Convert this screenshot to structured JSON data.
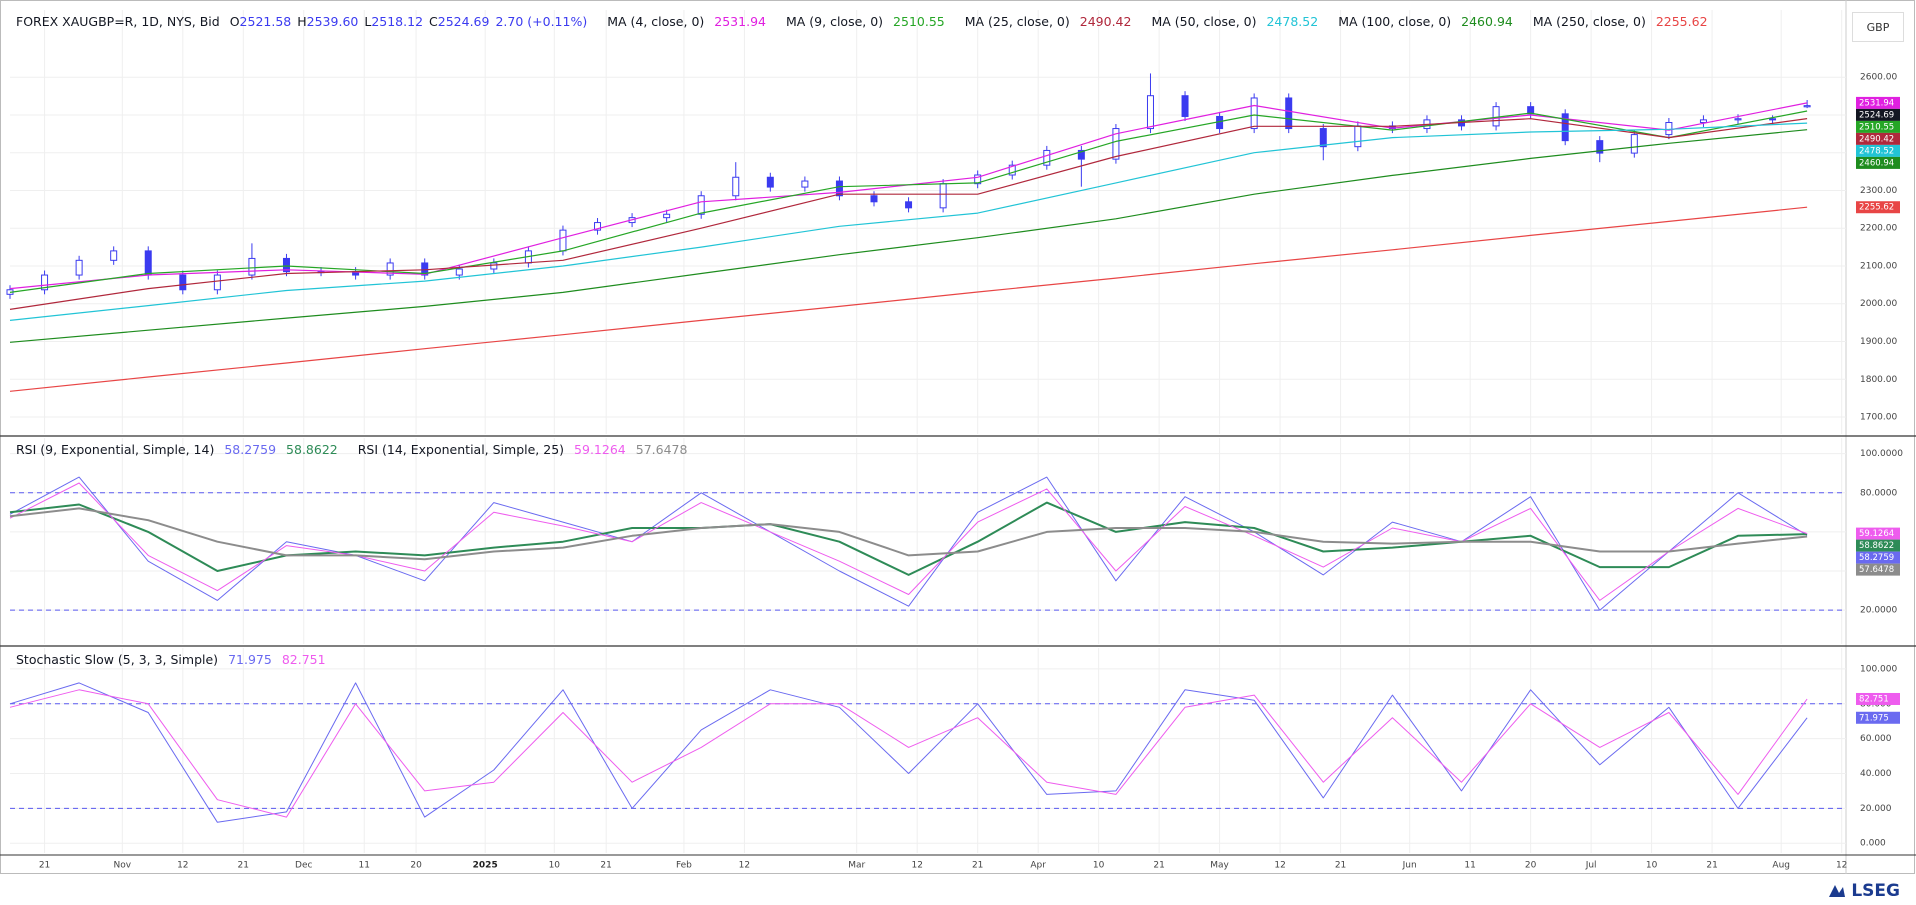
{
  "chart_data": [
    {
      "type": "candlestick",
      "title": "FOREX XAUGBP=R, 1D, NYS, Bid",
      "ohlc": [
        {
          "name": "O",
          "value": 2521.58
        },
        {
          "name": "H",
          "value": 2539.6,
          "label": "2539.60"
        },
        {
          "name": "L",
          "value": 2518.12
        },
        {
          "name": "C",
          "value": 2524.69
        }
      ],
      "change": "2.70 (+0.11%)",
      "currency": "GBP",
      "xlim": [
        0,
        212.5
      ],
      "xticks": [
        {
          "value": 4,
          "label": "21"
        },
        {
          "value": 13,
          "label": "Nov"
        },
        {
          "value": 20,
          "label": "12"
        },
        {
          "value": 27,
          "label": "21"
        },
        {
          "value": 34,
          "label": "Dec"
        },
        {
          "value": 41,
          "label": "11"
        },
        {
          "value": 47,
          "label": "20"
        },
        {
          "value": 55,
          "label": "2025"
        },
        {
          "value": 63,
          "label": "10"
        },
        {
          "value": 69,
          "label": "21"
        },
        {
          "value": 78,
          "label": "Feb"
        },
        {
          "value": 85,
          "label": "12"
        },
        {
          "value": 98,
          "label": "Mar"
        },
        {
          "value": 105,
          "label": "12"
        },
        {
          "value": 112,
          "label": "21"
        },
        {
          "value": 119,
          "label": "Apr"
        },
        {
          "value": 126,
          "label": "10"
        },
        {
          "value": 133,
          "label": "21"
        },
        {
          "value": 140,
          "label": "May"
        },
        {
          "value": 147,
          "label": "12"
        },
        {
          "value": 154,
          "label": "21"
        },
        {
          "value": 162,
          "label": "Jun"
        },
        {
          "value": 169,
          "label": "11"
        },
        {
          "value": 176,
          "label": "20"
        },
        {
          "value": 183,
          "label": "Jul"
        },
        {
          "value": 190,
          "label": "10"
        },
        {
          "value": 197,
          "label": "21"
        },
        {
          "value": 205,
          "label": "Aug"
        },
        {
          "value": 212,
          "label": "12"
        }
      ],
      "ylim": [
        1655,
        2778
      ],
      "yticks": [
        {
          "value": 1700,
          "label": "1700.00"
        },
        {
          "value": 1800,
          "label": "1800.00"
        },
        {
          "value": 1900,
          "label": "1900.00"
        },
        {
          "value": 2000,
          "label": "2000.00"
        },
        {
          "value": 2100,
          "label": "2100.00"
        },
        {
          "value": 2200,
          "label": "2200.00"
        },
        {
          "value": 2300,
          "label": "2300.00"
        },
        {
          "value": 2400,
          "label": "2400.00"
        },
        {
          "value": 2500,
          "label": "2500.00"
        },
        {
          "value": 2600,
          "label": "2600.00"
        }
      ],
      "grid": true,
      "candles": {
        "color": "#3b3bf0",
        "x": [
          0,
          4,
          8,
          12,
          16,
          20,
          24,
          28,
          32,
          36,
          40,
          44,
          48,
          52,
          56,
          60,
          64,
          68,
          72,
          76,
          80,
          84,
          88,
          92,
          96,
          100,
          104,
          108,
          112,
          116,
          120,
          124,
          128,
          132,
          136,
          140,
          144,
          148,
          152,
          156,
          160,
          164,
          168,
          172,
          176,
          180,
          184,
          188,
          192,
          196,
          200,
          204,
          208
        ],
        "open": [
          2025,
          2037,
          2076,
          2115,
          2140,
          2076,
          2037,
          2076,
          2120,
          2085,
          2085,
          2076,
          2108,
          2076,
          2092,
          2108,
          2140,
          2195,
          2215,
          2228,
          2237,
          2286,
          2335,
          2309,
          2325,
          2286,
          2270,
          2254,
          2318,
          2341,
          2367,
          2406,
          2383,
          2464,
          2551,
          2496,
          2464,
          2545,
          2464,
          2416,
          2471,
          2464,
          2487,
          2471,
          2522,
          2503,
          2432,
          2399,
          2448,
          2480,
          2487,
          2490,
          2521.58
        ],
        "high": [
          2049,
          2088,
          2127,
          2152,
          2152,
          2088,
          2088,
          2160,
          2132,
          2097,
          2097,
          2120,
          2120,
          2104,
          2120,
          2152,
          2207,
          2227,
          2240,
          2249,
          2298,
          2375,
          2347,
          2337,
          2337,
          2298,
          2282,
          2330,
          2353,
          2379,
          2418,
          2418,
          2476,
          2610,
          2563,
          2508,
          2557,
          2557,
          2476,
          2483,
          2483,
          2499,
          2499,
          2534,
          2534,
          2515,
          2444,
          2460,
          2492,
          2499,
          2502,
          2499,
          2539.6
        ],
        "low": [
          2013,
          2025,
          2064,
          2103,
          2064,
          2025,
          2025,
          2064,
          2073,
          2073,
          2064,
          2064,
          2064,
          2064,
          2080,
          2096,
          2128,
          2183,
          2203,
          2216,
          2225,
          2274,
          2297,
          2297,
          2274,
          2258,
          2242,
          2242,
          2306,
          2329,
          2355,
          2310,
          2371,
          2452,
          2484,
          2452,
          2452,
          2452,
          2380,
          2404,
          2452,
          2452,
          2459,
          2459,
          2491,
          2420,
          2375,
          2387,
          2436,
          2468,
          2475,
          2475,
          2518.12
        ],
        "close": [
          2037,
          2076,
          2115,
          2140,
          2076,
          2037,
          2076,
          2120,
          2085,
          2085,
          2076,
          2108,
          2076,
          2092,
          2108,
          2140,
          2195,
          2215,
          2228,
          2237,
          2286,
          2335,
          2309,
          2325,
          2286,
          2270,
          2254,
          2318,
          2341,
          2367,
          2406,
          2383,
          2464,
          2551,
          2496,
          2464,
          2545,
          2464,
          2416,
          2471,
          2464,
          2487,
          2471,
          2522,
          2503,
          2432,
          2399,
          2448,
          2480,
          2487,
          2490,
          2487,
          2524.69
        ]
      },
      "x": [
        0,
        16,
        32,
        48,
        64,
        80,
        96,
        112,
        128,
        144,
        160,
        176,
        192,
        208
      ],
      "indicators": [
        {
          "name": "MA (4, close, 0)",
          "series": [
            {
              "color": "#e020e0",
              "values": [
                2040,
                2076,
                2090,
                2078,
                2175,
                2270,
                2295,
                2335,
                2450,
                2525,
                2465,
                2500,
                2460,
                2531.94
              ]
            }
          ]
        },
        {
          "name": "MA (9, close, 0)",
          "series": [
            {
              "color": "#26a626",
              "values": [
                2030,
                2080,
                2100,
                2080,
                2140,
                2240,
                2310,
                2320,
                2430,
                2500,
                2460,
                2505,
                2440,
                2510.55
              ]
            }
          ]
        },
        {
          "name": "MA (25, close, 0)",
          "series": [
            {
              "color": "#b0283c",
              "values": [
                1985,
                2040,
                2080,
                2090,
                2115,
                2200,
                2290,
                2290,
                2390,
                2470,
                2470,
                2490,
                2440,
                2490.42
              ]
            }
          ]
        },
        {
          "name": "MA (50, close, 0)",
          "series": [
            {
              "color": "#22c4d6",
              "values": [
                1956,
                1995,
                2035,
                2060,
                2100,
                2150,
                2205,
                2240,
                2320,
                2400,
                2440,
                2455,
                2462,
                2478.52
              ]
            }
          ]
        },
        {
          "name": "MA (100, close, 0)",
          "series": [
            {
              "color": "#1e8c1e",
              "values": [
                1898,
                1930,
                1962,
                1993,
                2030,
                2080,
                2130,
                2175,
                2225,
                2290,
                2340,
                2385,
                2425,
                2460.94
              ]
            }
          ]
        },
        {
          "name": "MA (250, close, 0)",
          "series": [
            {
              "color": "#e84545",
              "values": [
                1768,
                1806,
                1843,
                1881,
                1918,
                1956,
                1993,
                2031,
                2068,
                2106,
                2143,
                2181,
                2218,
                2255.62
              ]
            }
          ]
        }
      ]
    },
    {
      "type": "line",
      "ylim": [
        2.7,
        108
      ],
      "yticks": [
        {
          "value": 20,
          "label": "20.0000"
        },
        {
          "value": 40,
          "label": "40.0000"
        },
        {
          "value": 60,
          "label": "60.0000"
        },
        {
          "value": 80,
          "label": "80.0000"
        },
        {
          "value": 100,
          "label": "100.0000"
        }
      ],
      "levels": [
        20,
        80
      ],
      "x": [
        0,
        8,
        16,
        24,
        32,
        40,
        48,
        56,
        64,
        72,
        80,
        88,
        96,
        104,
        112,
        120,
        128,
        136,
        144,
        152,
        160,
        168,
        176,
        184,
        192,
        200,
        208
      ],
      "indicators": [
        {
          "name": "RSI (9, Exponential, Simple, 14)",
          "series": [
            {
              "color": "#6a6af0",
              "width": 1,
              "values": [
                69,
                88,
                45,
                25,
                55,
                48,
                35,
                75,
                65,
                55,
                80,
                60,
                40,
                22,
                70,
                88,
                35,
                78,
                60,
                38,
                65,
                55,
                78,
                20,
                50,
                80,
                58.2759
              ]
            },
            {
              "color": "#2e8b57",
              "width": 2,
              "values": [
                70,
                74,
                60,
                40,
                48,
                50,
                48,
                52,
                55,
                62,
                62,
                64,
                55,
                38,
                55,
                75,
                60,
                65,
                62,
                50,
                52,
                55,
                58,
                42,
                42,
                58,
                58.8622
              ]
            }
          ]
        },
        {
          "name": "RSI (14, Exponential, Simple, 25)",
          "series": [
            {
              "color": "#ee5cee",
              "width": 1,
              "values": [
                67,
                85,
                48,
                30,
                53,
                48,
                40,
                70,
                63,
                55,
                75,
                60,
                45,
                28,
                65,
                82,
                40,
                73,
                58,
                42,
                62,
                55,
                72,
                25,
                50,
                72,
                59.1264
              ]
            },
            {
              "color": "#8c8c8c",
              "width": 2,
              "values": [
                68,
                72,
                66,
                55,
                48,
                48,
                46,
                50,
                52,
                58,
                62,
                64,
                60,
                48,
                50,
                60,
                62,
                62,
                60,
                55,
                54,
                55,
                55,
                50,
                50,
                54,
                57.6478
              ]
            }
          ]
        }
      ]
    },
    {
      "type": "line",
      "ylim": [
        -5.6,
        112
      ],
      "yticks": [
        {
          "value": 0,
          "label": "0.000"
        },
        {
          "value": 20,
          "label": "20.000"
        },
        {
          "value": 40,
          "label": "40.000"
        },
        {
          "value": 60,
          "label": "60.000"
        },
        {
          "value": 80,
          "label": "80.000"
        },
        {
          "value": 100,
          "label": "100.000"
        }
      ],
      "levels": [
        20,
        80
      ],
      "x": [
        0,
        8,
        16,
        24,
        32,
        40,
        48,
        56,
        64,
        72,
        80,
        88,
        96,
        104,
        112,
        120,
        128,
        136,
        144,
        152,
        160,
        168,
        176,
        184,
        192,
        200,
        208
      ],
      "indicators": [
        {
          "name": "Stochastic Slow (5, 3, 3, Simple)",
          "series": [
            {
              "color": "#6a6af0",
              "width": 1,
              "values": [
                80,
                92,
                75,
                12,
                18,
                92,
                15,
                42,
                88,
                20,
                65,
                88,
                78,
                40,
                80,
                28,
                30,
                88,
                82,
                26,
                85,
                30,
                88,
                45,
                78,
                20,
                71.975
              ]
            },
            {
              "color": "#ee5cee",
              "width": 1,
              "values": [
                78,
                88,
                80,
                25,
                15,
                80,
                30,
                35,
                75,
                35,
                55,
                80,
                80,
                55,
                72,
                35,
                28,
                78,
                85,
                35,
                72,
                35,
                80,
                55,
                75,
                28,
                82.751
              ]
            }
          ]
        }
      ]
    }
  ],
  "branding": "LSEG"
}
